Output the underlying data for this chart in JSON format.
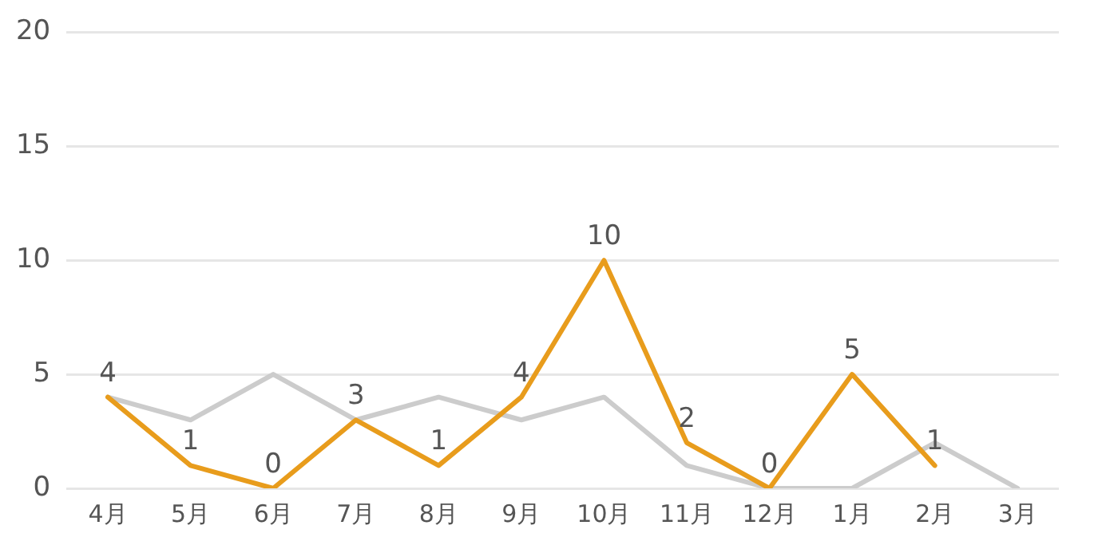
{
  "chart_data": {
    "type": "line",
    "categories": [
      "4月",
      "5月",
      "6月",
      "7月",
      "8月",
      "9月",
      "10月",
      "11月",
      "12月",
      "1月",
      "2月",
      "3月"
    ],
    "series": [
      {
        "color": "#e89c1c",
        "values": [
          4,
          1,
          0,
          3,
          1,
          4,
          10,
          2,
          0,
          5,
          1,
          null
        ],
        "value_labels": [
          "4",
          "1",
          "0",
          "3",
          "1",
          "4",
          "10",
          "2",
          "0",
          "5",
          "1",
          null
        ]
      },
      {
        "color": "#cccccc",
        "values": [
          4,
          3,
          5,
          3,
          4,
          3,
          4,
          1,
          0,
          0,
          2,
          0
        ]
      }
    ],
    "ylim": [
      0,
      20
    ],
    "yticks": [
      0,
      5,
      10,
      15,
      20
    ],
    "grid": "y",
    "legend": false,
    "marker": "none",
    "line_style": "solid"
  }
}
